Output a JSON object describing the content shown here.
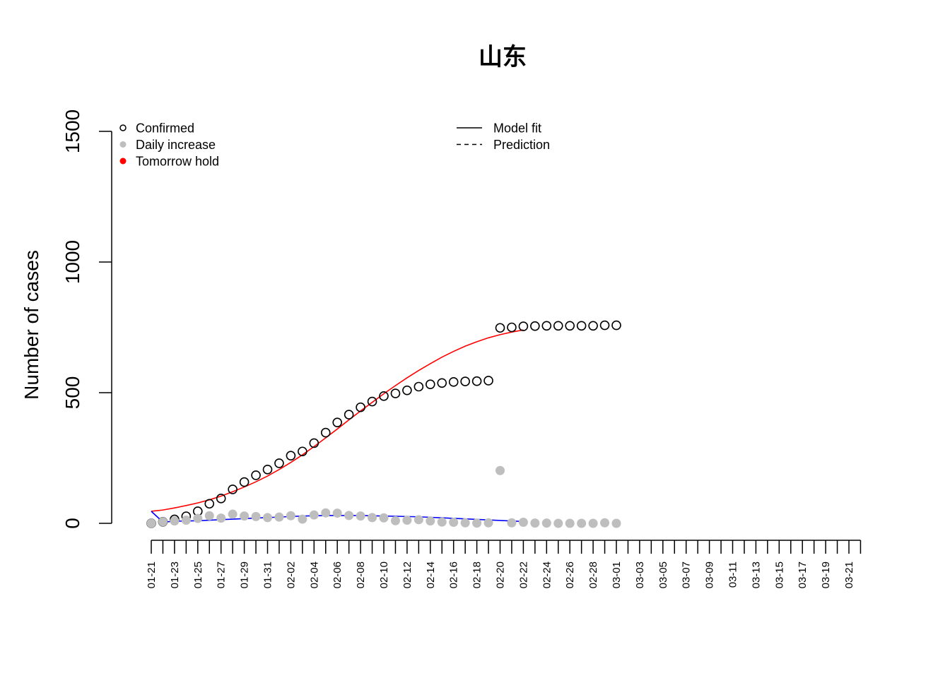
{
  "chart_data": {
    "type": "scatter",
    "title": "山东",
    "xlabel": "",
    "ylabel": "Number of cases",
    "ylim": [
      0,
      1500
    ],
    "yticks": [
      0,
      500,
      1000,
      1500
    ],
    "x_tick_labels": [
      "01-21",
      "01-23",
      "01-25",
      "01-27",
      "01-29",
      "01-31",
      "02-02",
      "02-04",
      "02-06",
      "02-08",
      "02-10",
      "02-12",
      "02-14",
      "02-16",
      "02-18",
      "02-20",
      "02-22",
      "02-24",
      "02-26",
      "02-28",
      "03-01",
      "03-03",
      "03-05",
      "03-07",
      "03-09",
      "03-11",
      "03-13",
      "03-15",
      "03-17",
      "03-19",
      "03-21"
    ],
    "x_days_total": 62,
    "grid": false,
    "legend": {
      "left": [
        {
          "name": "Confirmed",
          "marker": "open-circle",
          "color": "#000000"
        },
        {
          "name": "Daily increase",
          "marker": "filled-circle",
          "color": "#bebebe"
        },
        {
          "name": "Tomorrow hold",
          "marker": "filled-circle",
          "color": "#ff0000"
        }
      ],
      "right": [
        {
          "name": "Model fit",
          "line": "solid",
          "color": "#000000"
        },
        {
          "name": "Prediction",
          "line": "dashed",
          "color": "#000000"
        }
      ],
      "placement": "top"
    },
    "series": [
      {
        "name": "Confirmed",
        "style": "open-circle",
        "color": "#000000",
        "x_start": "01-21",
        "values": [
          0,
          6,
          15,
          27,
          46,
          75,
          95,
          130,
          158,
          184,
          206,
          230,
          259,
          275,
          307,
          347,
          386,
          416,
          444,
          466,
          487,
          497,
          509,
          523,
          532,
          537,
          541,
          543,
          544,
          546,
          748,
          750,
          754,
          755,
          756,
          756,
          756,
          756,
          756,
          758,
          758
        ]
      },
      {
        "name": "Daily increase",
        "style": "filled-circle",
        "color": "#bebebe",
        "x_start": "01-21",
        "values": [
          0,
          6,
          9,
          12,
          19,
          29,
          20,
          35,
          28,
          26,
          22,
          24,
          29,
          16,
          32,
          40,
          39,
          30,
          28,
          22,
          21,
          10,
          12,
          14,
          9,
          5,
          4,
          2,
          1,
          2,
          202,
          2,
          4,
          1,
          1,
          0,
          0,
          0,
          0,
          2,
          0
        ]
      },
      {
        "name": "Model fit (cumulative)",
        "style": "line",
        "color": "#ff0000",
        "x_start": "01-21",
        "values": [
          46,
          51,
          59,
          68,
          78,
          90,
          104,
          121,
          139,
          159,
          181,
          206,
          233,
          262,
          294,
          327,
          361,
          396,
          430,
          463,
          496,
          527,
          557,
          585,
          611,
          636,
          658,
          678,
          695,
          710,
          722,
          732,
          740
        ]
      },
      {
        "name": "Model fit (daily)",
        "style": "line",
        "color": "#0000ff",
        "x_start": "01-21",
        "values": [
          46,
          5,
          8,
          9,
          10,
          12,
          14,
          16,
          18,
          20,
          22,
          24,
          26,
          28,
          29,
          30,
          30,
          30,
          30,
          29,
          28,
          27,
          26,
          25,
          23,
          21,
          19,
          17,
          15,
          13,
          11,
          9,
          7
        ]
      }
    ]
  }
}
